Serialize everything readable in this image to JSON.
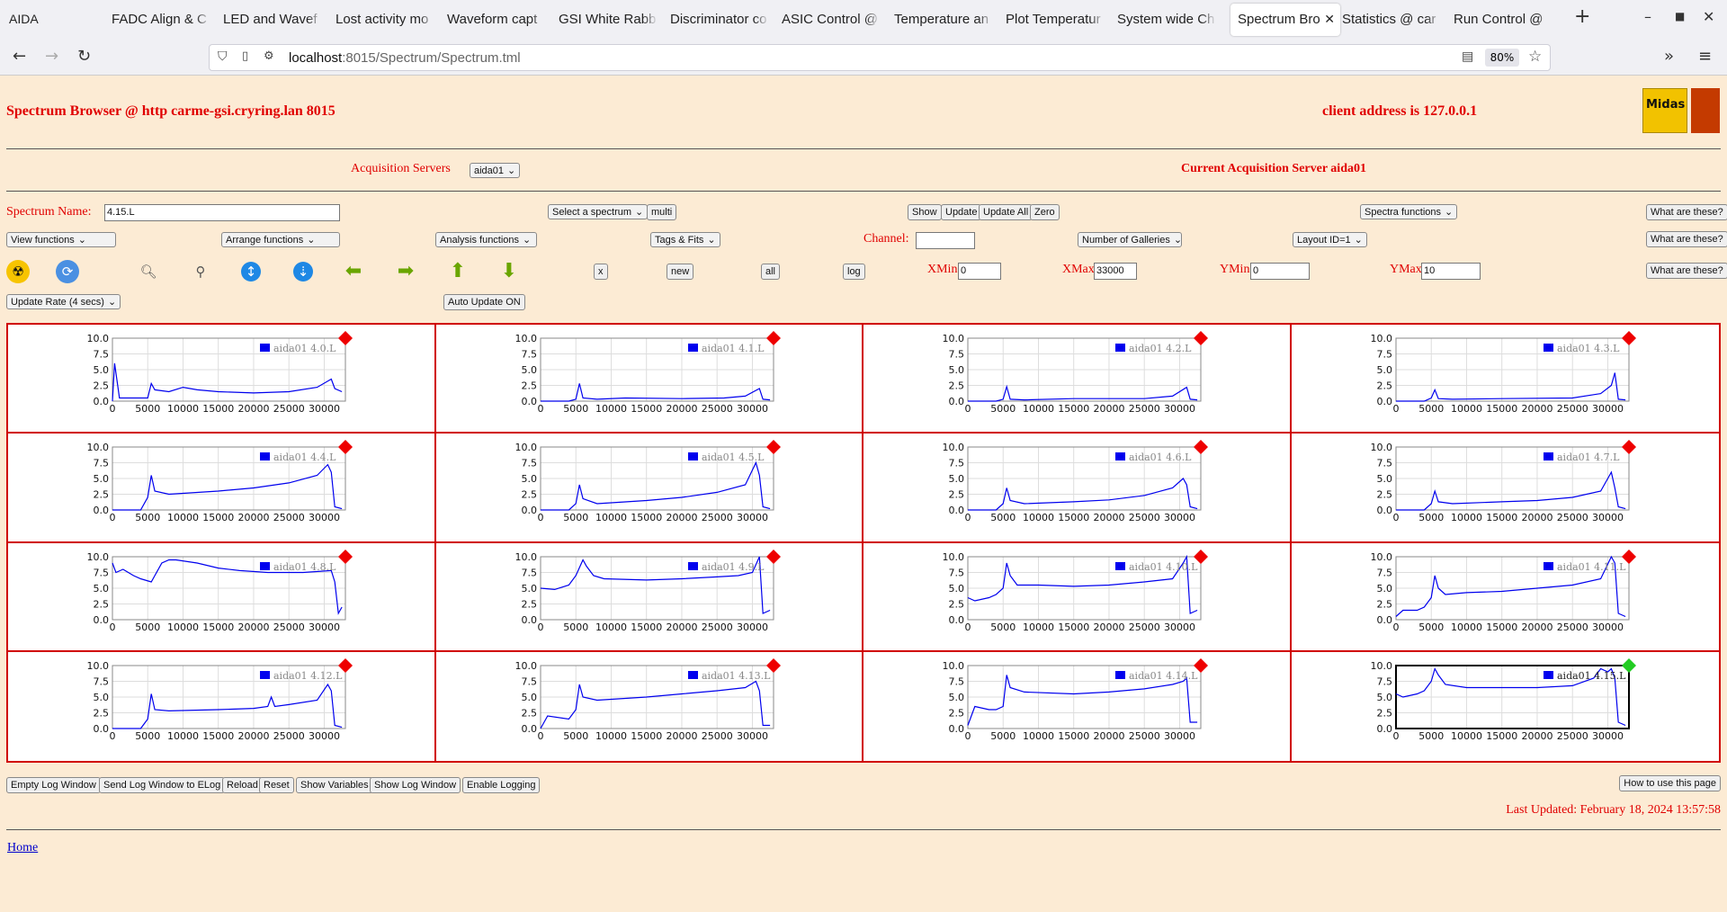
{
  "browser": {
    "app_title": "AIDA",
    "tabs": [
      {
        "label": "FADC Align & C",
        "left": 124
      },
      {
        "label": "LED and Wavef",
        "left": 248
      },
      {
        "label": "Lost activity mo",
        "left": 373
      },
      {
        "label": "Waveform capt",
        "left": 497
      },
      {
        "label": "GSI White Rabb",
        "left": 621
      },
      {
        "label": "Discriminator co",
        "left": 745
      },
      {
        "label": "ASIC Control @",
        "left": 869
      },
      {
        "label": "Temperature an",
        "left": 994
      },
      {
        "label": "Plot Temperatur",
        "left": 1118
      },
      {
        "label": "System wide Ch",
        "left": 1242
      },
      {
        "label": "Spectrum Bro",
        "left": 1368,
        "active": true
      },
      {
        "label": "Statistics @ car",
        "left": 1492
      },
      {
        "label": "Run Control @",
        "left": 1616
      }
    ],
    "url_host": "localhost",
    "url_rest": ":8015/Spectrum/Spectrum.tml",
    "zoom": "80%"
  },
  "header": {
    "title": "Spectrum Browser @ http carme-gsi.cryring.lan 8015",
    "client": "client address is 127.0.0.1",
    "logo_text": "Midas"
  },
  "acq": {
    "label": "Acquisition Servers",
    "server_select": "aida01",
    "current": "Current Acquisition Server aida01"
  },
  "controls": {
    "spectrum_name_label": "Spectrum Name:",
    "spectrum_name_value": "4.15.L",
    "select_spectrum": "Select a spectrum",
    "multi": "multi",
    "show": "Show",
    "update": "Update",
    "update_all": "Update All",
    "zero": "Zero",
    "spectra_functions": "Spectra functions",
    "what": "What are these?",
    "view_functions": "View functions",
    "arrange_functions": "Arrange functions",
    "analysis_functions": "Analysis functions",
    "tags_fits": "Tags & Fits",
    "channel_label": "Channel:",
    "galleries": "Number of Galleries",
    "layout": "Layout ID=1",
    "x": "x",
    "new": "new",
    "all": "all",
    "log": "log",
    "xmin_label": "XMin",
    "xmin": "0",
    "xmax_label": "XMax",
    "xmax": "33000",
    "ymin_label": "YMin",
    "ymin": "0",
    "ymax_label": "YMax",
    "ymax": "10",
    "update_rate": "Update Rate (4 secs)",
    "auto_update": "Auto Update ON"
  },
  "icons": [
    "radiation-icon",
    "refresh-icon",
    "zoom-in-icon",
    "zoom-out-icon",
    "expand-y-icon",
    "shrink-y-icon",
    "arrow-left-icon",
    "arrow-right-icon",
    "arrow-up-icon",
    "arrow-down-icon"
  ],
  "chart_data": {
    "type": "line",
    "xlim": [
      0,
      33000
    ],
    "ylim": [
      0,
      10
    ],
    "x_ticks": [
      0,
      5000,
      10000,
      15000,
      20000,
      25000,
      30000
    ],
    "y_ticks": [
      "0.0",
      "2.5",
      "5.0",
      "7.5",
      "10.0"
    ],
    "grid": true,
    "legend_position": "top-right",
    "series_color": "#0000ee",
    "charts": [
      {
        "name": "aida01 4.0.L",
        "x": [
          0,
          300,
          1000,
          3000,
          5000,
          5500,
          6000,
          8000,
          10000,
          12000,
          15000,
          20000,
          25000,
          29000,
          31000,
          31500,
          32500
        ],
        "y": [
          0,
          6,
          0.5,
          0.5,
          0.5,
          2.8,
          1.8,
          1.5,
          2.2,
          1.8,
          1.5,
          1.3,
          1.5,
          2.2,
          3.5,
          2,
          1.5
        ]
      },
      {
        "name": "aida01 4.1.L",
        "x": [
          0,
          4000,
          5000,
          5500,
          6000,
          8000,
          12000,
          20000,
          26000,
          29000,
          31000,
          31500,
          32500
        ],
        "y": [
          0,
          0,
          0.3,
          2.8,
          0.5,
          0.3,
          0.5,
          0.4,
          0.5,
          0.8,
          2,
          0.3,
          0.2
        ]
      },
      {
        "name": "aida01 4.2.L",
        "x": [
          0,
          4000,
          5000,
          5500,
          6000,
          8000,
          15000,
          25000,
          29000,
          31000,
          31500,
          32500
        ],
        "y": [
          0,
          0,
          0.3,
          2.3,
          0.3,
          0.2,
          0.4,
          0.4,
          0.8,
          2.2,
          0.3,
          0.2
        ]
      },
      {
        "name": "aida01 4.3.L",
        "x": [
          0,
          4000,
          5000,
          5500,
          6000,
          8000,
          15000,
          25000,
          29000,
          30500,
          31000,
          31500,
          32500
        ],
        "y": [
          0,
          0,
          0.5,
          1.8,
          0.4,
          0.3,
          0.4,
          0.5,
          1.2,
          2.5,
          4.5,
          0.3,
          0.2
        ]
      },
      {
        "name": "aida01 4.4.L",
        "x": [
          0,
          4000,
          5000,
          5500,
          6000,
          8000,
          15000,
          20000,
          25000,
          29000,
          30500,
          31000,
          31500,
          32500
        ],
        "y": [
          0,
          0,
          2,
          5.5,
          3,
          2.5,
          3,
          3.5,
          4.3,
          5.5,
          7.2,
          6,
          0.5,
          0.2
        ]
      },
      {
        "name": "aida01 4.5.L",
        "x": [
          0,
          4000,
          5000,
          5500,
          6000,
          8000,
          15000,
          20000,
          25000,
          29000,
          30500,
          31000,
          31500,
          32500
        ],
        "y": [
          0,
          0,
          1,
          4,
          1.8,
          1,
          1.5,
          2,
          2.8,
          4,
          7.5,
          5.5,
          0.5,
          0.2
        ]
      },
      {
        "name": "aida01 4.6.L",
        "x": [
          0,
          4000,
          5000,
          5500,
          6000,
          8000,
          15000,
          20000,
          25000,
          29000,
          30500,
          31000,
          31500,
          32500
        ],
        "y": [
          0,
          0,
          1,
          3.5,
          1.5,
          1,
          1.3,
          1.6,
          2.3,
          3.5,
          5,
          4,
          0.5,
          0.2
        ]
      },
      {
        "name": "aida01 4.7.L",
        "x": [
          0,
          4000,
          5000,
          5500,
          6000,
          8000,
          15000,
          20000,
          25000,
          29000,
          30500,
          31000,
          31500,
          32500
        ],
        "y": [
          0,
          0,
          1,
          3,
          1.3,
          1,
          1.3,
          1.5,
          2,
          3,
          6,
          3.5,
          0.5,
          0.2
        ]
      },
      {
        "name": "aida01 4.8.L",
        "x": [
          0,
          500,
          1500,
          3000,
          4000,
          5500,
          6000,
          7000,
          8000,
          9000,
          12000,
          15000,
          18000,
          22000,
          27000,
          31000,
          31500,
          32000,
          32500
        ],
        "y": [
          9,
          7.5,
          8,
          7,
          6.5,
          6,
          7,
          9,
          9.5,
          9.5,
          9,
          8.2,
          7.8,
          7.5,
          7.5,
          7.8,
          6,
          1,
          2
        ]
      },
      {
        "name": "aida01 4.9.L",
        "x": [
          0,
          2000,
          4000,
          5000,
          6000,
          6500,
          7500,
          9000,
          15000,
          20000,
          25000,
          28000,
          30000,
          31000,
          31500,
          32500
        ],
        "y": [
          5,
          4.8,
          5.5,
          7,
          9.5,
          8.5,
          7,
          6.5,
          6.3,
          6.5,
          6.8,
          7,
          7.5,
          10,
          1,
          1.5
        ]
      },
      {
        "name": "aida01 4.10.L",
        "x": [
          0,
          1000,
          3000,
          4000,
          5000,
          5500,
          6000,
          7000,
          10000,
          15000,
          20000,
          25000,
          29000,
          30500,
          31000,
          31500,
          32500
        ],
        "y": [
          3.5,
          3,
          3.5,
          4,
          5,
          9,
          7,
          5.5,
          5.5,
          5.3,
          5.5,
          6,
          6.5,
          9,
          10,
          1,
          1.5
        ]
      },
      {
        "name": "aida01 4.11.L",
        "x": [
          0,
          1000,
          3000,
          4000,
          5000,
          5500,
          6000,
          7000,
          10000,
          15000,
          20000,
          25000,
          29000,
          30500,
          31000,
          31500,
          32500
        ],
        "y": [
          0.5,
          1.5,
          1.5,
          2,
          3.5,
          7,
          5,
          4,
          4.3,
          4.5,
          5,
          5.5,
          6.5,
          10,
          9,
          1,
          0.5
        ]
      },
      {
        "name": "aida01 4.12.L",
        "x": [
          0,
          4000,
          5000,
          5500,
          6000,
          8000,
          15000,
          20000,
          22000,
          22500,
          23000,
          25000,
          29000,
          30500,
          31000,
          31500,
          32500
        ],
        "y": [
          0,
          0,
          1.5,
          5.5,
          3,
          2.8,
          3,
          3.2,
          3.5,
          5,
          3.5,
          3.8,
          4.5,
          7,
          6,
          0.5,
          0.2
        ]
      },
      {
        "name": "aida01 4.13.L",
        "x": [
          0,
          1000,
          4000,
          5000,
          5500,
          6000,
          8000,
          15000,
          20000,
          25000,
          29000,
          30500,
          31000,
          31500,
          32500
        ],
        "y": [
          0,
          2,
          1.5,
          3,
          7,
          5,
          4.5,
          5,
          5.5,
          6,
          6.5,
          7.5,
          6,
          0.5,
          0.5
        ]
      },
      {
        "name": "aida01 4.14.L",
        "x": [
          0,
          1000,
          3000,
          4000,
          5000,
          5500,
          6000,
          8000,
          15000,
          20000,
          25000,
          29000,
          30500,
          31000,
          31500,
          32500
        ],
        "y": [
          0.5,
          3.5,
          3,
          3,
          3.5,
          8.5,
          6.5,
          5.8,
          5.5,
          5.8,
          6.3,
          7,
          7.5,
          8,
          1,
          1
        ]
      },
      {
        "name": "aida01 4.15.L",
        "x": [
          0,
          1000,
          3000,
          4000,
          5000,
          5500,
          6000,
          7000,
          10000,
          15000,
          20000,
          25000,
          28000,
          29000,
          30000,
          30500,
          31000,
          31500,
          32500
        ],
        "y": [
          5.5,
          5,
          5.5,
          6,
          7.5,
          9.5,
          8.5,
          7,
          6.5,
          6.5,
          6.5,
          6.8,
          8,
          9.5,
          9,
          9.5,
          8,
          1,
          0.5
        ],
        "selected": true
      }
    ]
  },
  "footer": {
    "buttons": [
      "Empty Log Window",
      "Send Log Window to ELog",
      "Reload",
      "Reset",
      "Show Variables",
      "Show Log Window",
      "Enable Logging"
    ],
    "how": "How to use this page",
    "last_updated": "Last Updated: February 18, 2024 13:57:58",
    "home": "Home"
  }
}
